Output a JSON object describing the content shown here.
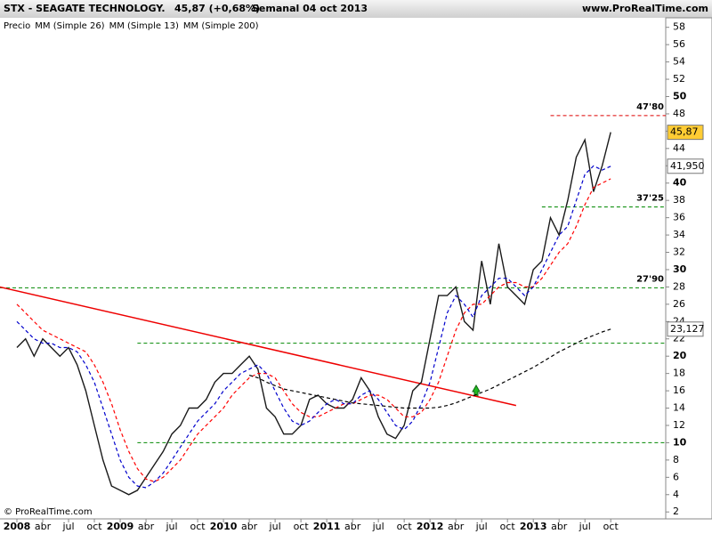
{
  "header": {
    "symbol": "STX - SEAGATE TECHNOLOGY.",
    "quote": "45,87 (+0,68%)",
    "period": "Semanal  04 oct 2013",
    "site": "www.ProRealTime.com"
  },
  "copyright": "© ProRealTime.com",
  "chart_data": {
    "type": "line",
    "x": [
      "2008-01",
      "2008-02",
      "2008-03",
      "2008-04",
      "2008-05",
      "2008-06",
      "2008-07",
      "2008-08",
      "2008-09",
      "2008-10",
      "2008-11",
      "2008-12",
      "2009-01",
      "2009-02",
      "2009-03",
      "2009-04",
      "2009-05",
      "2009-06",
      "2009-07",
      "2009-08",
      "2009-09",
      "2009-10",
      "2009-11",
      "2009-12",
      "2010-01",
      "2010-02",
      "2010-03",
      "2010-04",
      "2010-05",
      "2010-06",
      "2010-07",
      "2010-08",
      "2010-09",
      "2010-10",
      "2010-11",
      "2010-12",
      "2011-01",
      "2011-02",
      "2011-03",
      "2011-04",
      "2011-05",
      "2011-06",
      "2011-07",
      "2011-08",
      "2011-09",
      "2011-10",
      "2011-11",
      "2011-12",
      "2012-01",
      "2012-02",
      "2012-03",
      "2012-04",
      "2012-05",
      "2012-06",
      "2012-07",
      "2012-08",
      "2012-09",
      "2012-10",
      "2012-11",
      "2012-12",
      "2013-01",
      "2013-02",
      "2013-03",
      "2013-04",
      "2013-05",
      "2013-06",
      "2013-07",
      "2013-08",
      "2013-09",
      "2013-10"
    ],
    "series": [
      {
        "name": "Precio",
        "color": "#1a1a1a",
        "values": [
          21,
          22,
          20,
          22,
          21,
          20,
          21,
          19,
          16,
          12,
          8,
          5,
          4.5,
          4,
          4.5,
          6,
          7.5,
          9,
          11,
          12,
          14,
          14,
          15,
          17,
          18,
          18,
          19,
          20,
          18.5,
          14,
          13,
          11,
          11,
          12,
          15,
          15.5,
          14.5,
          14,
          14,
          15,
          17.5,
          16,
          13,
          11,
          10.5,
          12,
          16,
          17,
          22,
          27,
          27,
          28,
          24,
          23,
          31,
          26,
          33,
          28,
          27,
          26,
          30,
          31,
          36,
          34,
          38,
          43,
          45,
          39,
          42,
          45.87
        ]
      },
      {
        "name": "MM (Simple 26)",
        "color": "#ff0000",
        "values": [
          26,
          25,
          24,
          23,
          22.5,
          22,
          21.5,
          21,
          20.5,
          19,
          17,
          14.5,
          11.5,
          9,
          7,
          5.8,
          5.5,
          6,
          7,
          8,
          9.5,
          11,
          12,
          13,
          14,
          15.5,
          16.5,
          17.5,
          18,
          18,
          17.5,
          16,
          14.5,
          13.5,
          13,
          13,
          13.5,
          14,
          14.5,
          14.5,
          15,
          15.5,
          15.5,
          15,
          14,
          13,
          13,
          13.5,
          15,
          17,
          20,
          23,
          25,
          26,
          26,
          27,
          28,
          28.5,
          28.5,
          28,
          28,
          29,
          30.5,
          32,
          33,
          35,
          37.5,
          39.5,
          40,
          40.5
        ]
      },
      {
        "name": "MM (Simple 13)",
        "color": "#0000cc",
        "values": [
          24,
          23,
          22,
          21.5,
          21.5,
          21,
          21,
          20.5,
          19,
          17,
          14,
          11,
          8,
          6,
          5,
          4.8,
          5.5,
          6.5,
          8,
          9.5,
          11,
          12.5,
          13.5,
          14.5,
          16,
          17,
          18,
          18.5,
          19,
          18,
          16,
          14,
          12.5,
          12,
          12.5,
          13.5,
          14.5,
          15,
          14.5,
          14.5,
          15.5,
          16,
          15,
          13.5,
          12,
          11.5,
          12.5,
          14.5,
          17,
          21,
          25,
          27,
          26,
          24.5,
          27,
          28,
          29,
          29,
          28,
          27,
          28,
          30,
          32,
          34,
          35,
          38,
          41,
          42,
          41.5,
          41.95
        ]
      },
      {
        "name": "MM (Simple 200)",
        "color": "#000000",
        "values": [
          null,
          null,
          null,
          null,
          null,
          null,
          null,
          null,
          null,
          null,
          null,
          null,
          null,
          null,
          null,
          null,
          null,
          null,
          null,
          null,
          null,
          null,
          null,
          null,
          null,
          null,
          null,
          17.8,
          17.5,
          17,
          16.6,
          16.2,
          16,
          15.8,
          15.6,
          15.4,
          15.2,
          15,
          14.8,
          14.6,
          14.5,
          14.4,
          14.3,
          14.2,
          14.1,
          14,
          14,
          14,
          14,
          14.1,
          14.3,
          14.6,
          15,
          15.4,
          15.8,
          16.2,
          16.7,
          17.2,
          17.7,
          18.2,
          18.7,
          19.3,
          19.9,
          20.5,
          21,
          21.5,
          22,
          22.4,
          22.8,
          23.127
        ]
      }
    ],
    "ylim": [
      1.2,
      59.1
    ],
    "yticks": [
      2,
      4,
      6,
      8,
      10,
      12,
      14,
      16,
      18,
      20,
      22,
      24,
      26,
      28,
      30,
      32,
      34,
      36,
      38,
      40,
      42,
      44,
      46,
      48,
      50,
      52,
      54,
      56,
      58
    ],
    "xticks": [
      {
        "value": "2008-01",
        "label": "2008"
      },
      {
        "value": "2008-04",
        "label": "abr"
      },
      {
        "value": "2008-07",
        "label": "jul"
      },
      {
        "value": "2008-10",
        "label": "oct"
      },
      {
        "value": "2009-01",
        "label": "2009"
      },
      {
        "value": "2009-04",
        "label": "abr"
      },
      {
        "value": "2009-07",
        "label": "jul"
      },
      {
        "value": "2009-10",
        "label": "oct"
      },
      {
        "value": "2010-01",
        "label": "2010"
      },
      {
        "value": "2010-04",
        "label": "abr"
      },
      {
        "value": "2010-07",
        "label": "jul"
      },
      {
        "value": "2010-10",
        "label": "oct"
      },
      {
        "value": "2011-01",
        "label": "2011"
      },
      {
        "value": "2011-04",
        "label": "abr"
      },
      {
        "value": "2011-07",
        "label": "jul"
      },
      {
        "value": "2011-10",
        "label": "oct"
      },
      {
        "value": "2012-01",
        "label": "2012"
      },
      {
        "value": "2012-04",
        "label": "abr"
      },
      {
        "value": "2012-07",
        "label": "jul"
      },
      {
        "value": "2012-10",
        "label": "oct"
      },
      {
        "value": "2013-01",
        "label": "2013"
      },
      {
        "value": "2013-04",
        "label": "abr"
      },
      {
        "value": "2013-07",
        "label": "jul"
      },
      {
        "value": "2013-10",
        "label": "oct"
      }
    ],
    "levels": [
      {
        "value": 47.8,
        "label": "47'80",
        "color": "#dd0000",
        "from": "2013-03"
      },
      {
        "value": 37.25,
        "label": "37'25",
        "color": "#008800",
        "from": "2013-02"
      },
      {
        "value": 27.9,
        "label": "27'90",
        "color": "#008800",
        "from": "2007-11"
      },
      {
        "value": 21.5,
        "color": "#008800",
        "from": "2009-03"
      },
      {
        "value": 10,
        "color": "#008800",
        "from": "2009-03"
      }
    ],
    "trendline": {
      "x": [
        "2007-11",
        "2012-11"
      ],
      "values": [
        28,
        14.3
      ],
      "color": "#ee0000"
    },
    "axis_labels": [
      {
        "value": 45.87,
        "label": "45,87",
        "color": "#ffcc33"
      },
      {
        "value": 41.95,
        "label": "41,950",
        "color": "#ffffff"
      },
      {
        "value": 23.127,
        "label": "23,127",
        "color": "#ffffff"
      }
    ]
  }
}
